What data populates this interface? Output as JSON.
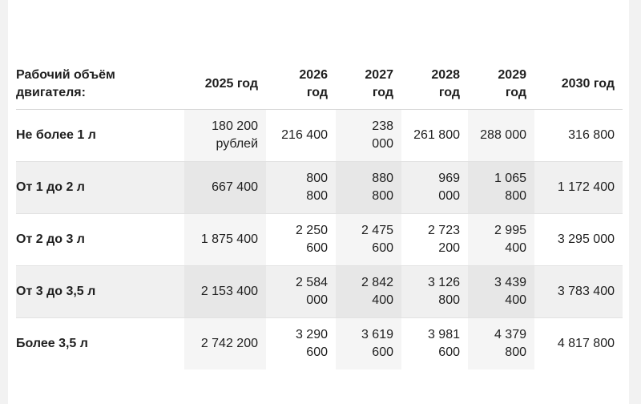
{
  "table": {
    "headers": [
      "Рабочий объём\nдвигателя:",
      "2025 год",
      "2026\nгод",
      "2027\nгод",
      "2028\nгод",
      "2029\nгод",
      "2030 год"
    ],
    "rows": [
      [
        "Не более 1 л",
        "180 200\nрублей",
        "216 400",
        "238\n000",
        "261 800",
        "288 000",
        "316 800"
      ],
      [
        "От 1 до 2 л",
        "667 400",
        "800\n800",
        "880\n800",
        "969\n000",
        "1 065\n800",
        "1 172 400"
      ],
      [
        "От 2 до 3 л",
        "1 875 400",
        "2 250\n600",
        "2 475\n600",
        "2 723\n200",
        "2 995\n400",
        "3 295 000"
      ],
      [
        "От 3 до 3,5 л",
        "2 153 400",
        "2 584\n000",
        "2 842\n400",
        "3 126\n800",
        "3 439\n400",
        "3 783 400"
      ],
      [
        "Более 3,5 л",
        "2 742 200",
        "3 290\n600",
        "3 619\n600",
        "3 981\n600",
        "4 379\n800",
        "4 817 800"
      ]
    ]
  }
}
